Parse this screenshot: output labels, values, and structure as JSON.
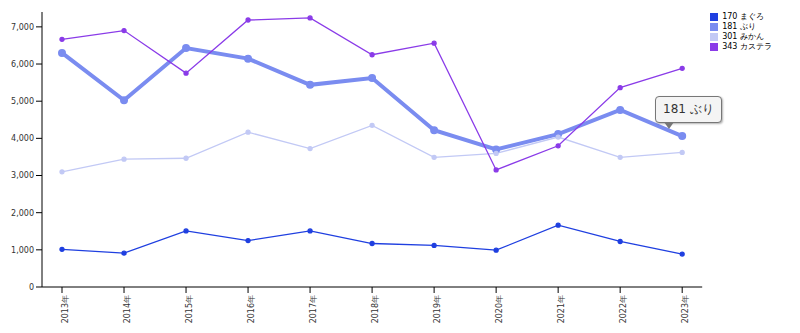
{
  "chart_data": {
    "type": "line",
    "categories": [
      "2013年",
      "2014年",
      "2015年",
      "2016年",
      "2017年",
      "2018年",
      "2019年",
      "2020年",
      "2021年",
      "2022年",
      "2023年"
    ],
    "series": [
      {
        "name": "170 まぐろ",
        "color": "#1f3fe0",
        "values": [
          1015,
          910,
          1510,
          1250,
          1510,
          1170,
          1120,
          990,
          1665,
          1225,
          885
        ]
      },
      {
        "name": "181 ぶり",
        "color": "#7a8cf0",
        "values": [
          6300,
          5025,
          6430,
          6145,
          5440,
          5625,
          4220,
          3700,
          4115,
          4765,
          4060
        ]
      },
      {
        "name": "301 みかん",
        "color": "#c2c9f5",
        "values": [
          3100,
          3440,
          3465,
          4165,
          3725,
          4350,
          3490,
          3595,
          4035,
          3490,
          3620
        ]
      },
      {
        "name": "343 カステラ",
        "color": "#8a3be8",
        "values": [
          6665,
          6900,
          5755,
          7185,
          7240,
          6250,
          6560,
          3150,
          3800,
          5365,
          5885
        ]
      }
    ],
    "ylim": [
      0,
      7400
    ],
    "yticks": [
      0,
      {
        "value": 1000,
        "label": "1,000"
      },
      {
        "value": 2000,
        "label": "2,000"
      },
      {
        "value": 3000,
        "label": "3,000"
      },
      {
        "value": 4000,
        "label": "4,000"
      },
      {
        "value": 5000,
        "label": "5,000"
      },
      {
        "value": 6000,
        "label": "6,000"
      },
      {
        "value": 7000,
        "label": "7,000"
      }
    ],
    "grid": false,
    "legend": "top-right",
    "marker": "circle",
    "annotations": [
      {
        "text": "181 ぶり"
      }
    ]
  }
}
